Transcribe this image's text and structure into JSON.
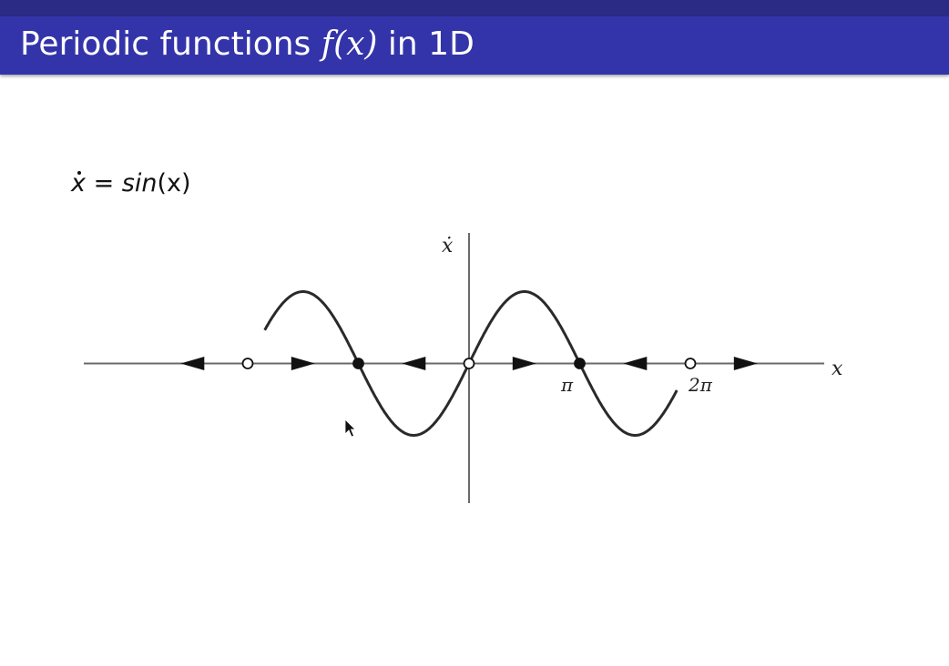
{
  "header": {
    "title_prefix": "Periodic functions ",
    "title_math": "f(x)",
    "title_suffix": " in 1D",
    "bar_color": "#3434aa",
    "title_color": "#ffffff"
  },
  "equation": {
    "lhs": "x",
    "operator": " = ",
    "rhs_func": "sin",
    "rhs_arg": "(x)"
  },
  "diagram": {
    "function": "sin(x)",
    "x_axis_label": "x",
    "y_axis_label": "ẋ",
    "tick_labels": [
      "π",
      "2π"
    ],
    "x_domain": [
      -5.8,
      5.9
    ],
    "fixed_points": [
      {
        "x": "-2π",
        "stability": "unstable"
      },
      {
        "x": "-π",
        "stability": "stable"
      },
      {
        "x": "0",
        "stability": "unstable"
      },
      {
        "x": "π",
        "stability": "stable"
      },
      {
        "x": "2π",
        "stability": "unstable"
      }
    ],
    "flow_directions": [
      "left",
      "right",
      "left",
      "right",
      "left",
      "right"
    ]
  },
  "cursor_icon": "pointer-arrow-icon"
}
